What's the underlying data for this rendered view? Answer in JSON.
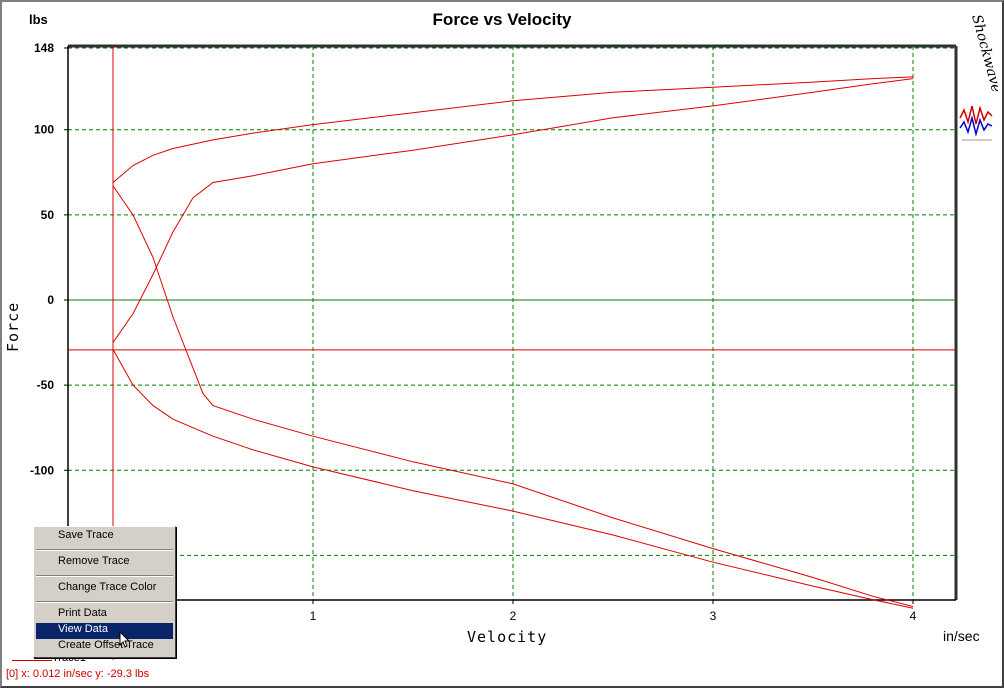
{
  "window": {
    "logo_text": "Shockwave"
  },
  "status": {
    "readout": "[0]  x: 0.012 in/sec  y: -29.3 lbs"
  },
  "legend": {
    "trace_label": "Trace1"
  },
  "context_menu": {
    "items": [
      {
        "label": "Save Trace",
        "selected": false
      },
      {
        "label": "Remove Trace",
        "selected": false
      },
      {
        "label": "Change Trace Color",
        "selected": false
      },
      {
        "label": "Print Data",
        "selected": false
      },
      {
        "label": "View Data",
        "selected": true
      },
      {
        "label": "Create Offset Trace",
        "selected": false
      }
    ]
  },
  "colors": {
    "trace": "#dd0000",
    "grid": "#008000",
    "axis": "#000000",
    "menu_highlight": "#0a246a"
  },
  "chart_data": {
    "type": "line",
    "title": "Force vs Velocity",
    "xlabel": "Velocity",
    "ylabel": "Force",
    "x_unit": "in/sec",
    "y_unit": "lbs",
    "xlim": [
      -0.2,
      4.2
    ],
    "ylim": [
      -180,
      148
    ],
    "x_ticks": [
      1,
      2,
      3,
      4
    ],
    "y_ticks": [
      148,
      100,
      50,
      0,
      -50,
      -100
    ],
    "grid": true,
    "cursor": {
      "x": 0.012,
      "y": -29.3
    },
    "series": [
      {
        "color": "#dd0000",
        "segments": [
          {
            "x": [
              0.0,
              0.1,
              0.2,
              0.3,
              0.5,
              0.7,
              1.0,
              1.5,
              2.0,
              2.5,
              3.0,
              3.5,
              3.8,
              4.0
            ],
            "y": [
              69,
              79,
              85,
              89,
              94,
              98,
              103,
              110,
              117,
              122,
              125,
              128,
              130,
              131
            ]
          },
          {
            "x": [
              4.0,
              3.8,
              3.5,
              3.0,
              2.5,
              2.0,
              1.5,
              1.0,
              0.7,
              0.5,
              0.4,
              0.3,
              0.2,
              0.1,
              0.0
            ],
            "y": [
              130,
              127,
              122,
              114,
              107,
              97,
              88,
              80,
              73,
              69,
              60,
              40,
              15,
              -8,
              -25
            ]
          },
          {
            "x": [
              0.0,
              0.1,
              0.2,
              0.3,
              0.5,
              0.7,
              1.0,
              1.5,
              2.0,
              2.5,
              3.0,
              3.5,
              3.8,
              4.0
            ],
            "y": [
              -29,
              -50,
              -62,
              -70,
              -80,
              -88,
              -98,
              -112,
              -124,
              -138,
              -154,
              -168,
              -176,
              -181
            ]
          },
          {
            "x": [
              4.0,
              3.8,
              3.5,
              3.0,
              2.5,
              2.0,
              1.5,
              1.0,
              0.7,
              0.5,
              0.45,
              0.4,
              0.3,
              0.2,
              0.1,
              0.0
            ],
            "y": [
              -180,
              -174,
              -163,
              -146,
              -128,
              -108,
              -95,
              -80,
              -70,
              -62,
              -55,
              -40,
              -10,
              25,
              50,
              67
            ]
          }
        ]
      }
    ],
    "cursor_lines": {
      "vertical_x": 0.0,
      "horizontal_y": -29.3
    }
  }
}
